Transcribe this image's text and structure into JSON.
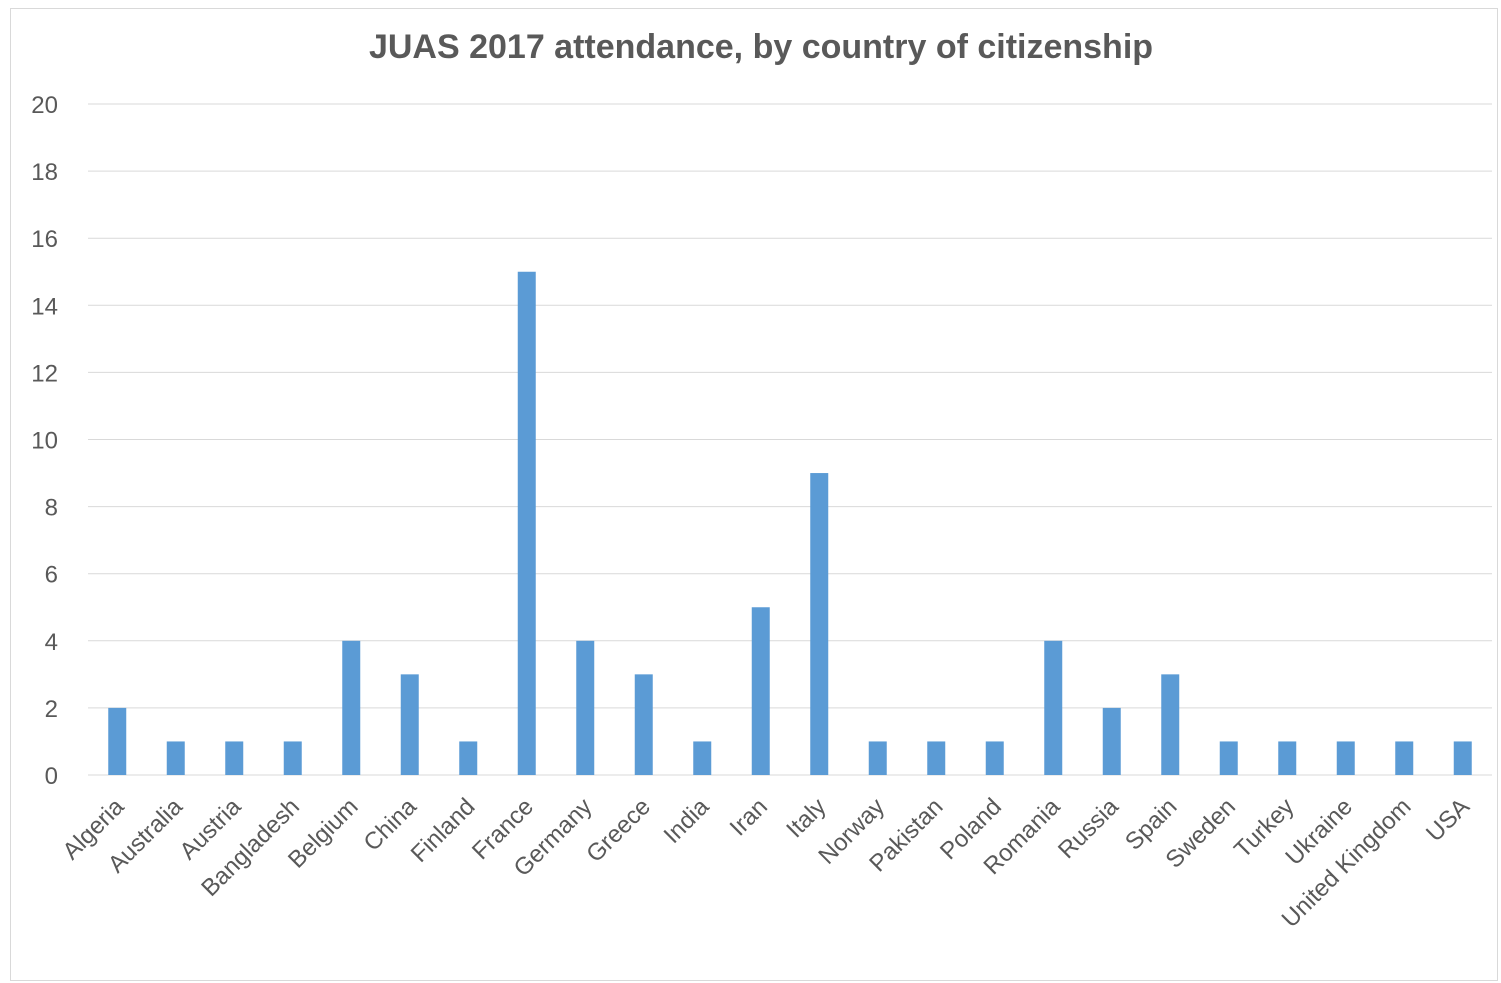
{
  "chart_data": {
    "type": "bar",
    "title": "JUAS 2017 attendance, by country of citizenship",
    "xlabel": "",
    "ylabel": "",
    "categories": [
      "Algeria",
      "Australia",
      "Austria",
      "Bangladesh",
      "Belgium",
      "China",
      "Finland",
      "France",
      "Germany",
      "Greece",
      "India",
      "Iran",
      "Italy",
      "Norway",
      "Pakistan",
      "Poland",
      "Romania",
      "Russia",
      "Spain",
      "Sweden",
      "Turkey",
      "Ukraine",
      "United Kingdom",
      "USA"
    ],
    "values": [
      2,
      1,
      1,
      1,
      4,
      3,
      1,
      15,
      4,
      3,
      1,
      5,
      9,
      1,
      1,
      1,
      4,
      2,
      3,
      1,
      1,
      1,
      1,
      1
    ],
    "ylim": [
      0,
      20
    ],
    "yticks": [
      0,
      2,
      4,
      6,
      8,
      10,
      12,
      14,
      16,
      18,
      20
    ],
    "grid": true,
    "legend": "none",
    "bar_color": "#5b9bd5",
    "grid_color": "#d9d9d9",
    "text_color": "#595959"
  }
}
